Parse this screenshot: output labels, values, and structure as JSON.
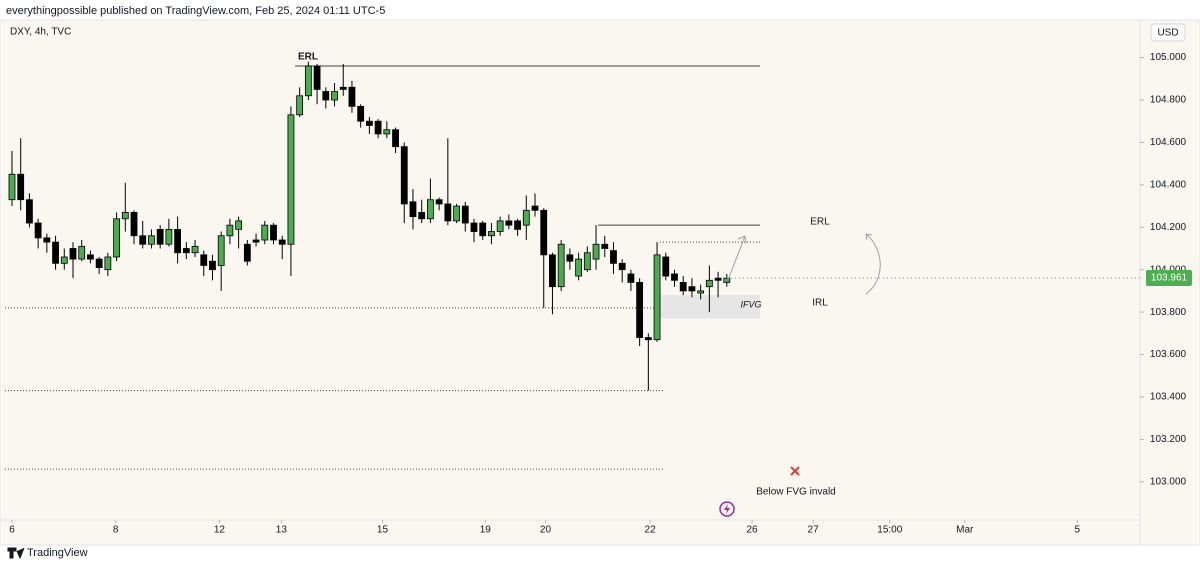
{
  "header": {
    "published": "everythingpossible published on TradingView.com, Feb 25, 2024 01:11 UTC-5",
    "symbol": "DXY, 4h, TVC",
    "currency": "USD",
    "brand": "TradingView"
  },
  "chart_data": {
    "type": "candlestick",
    "x": [
      0,
      1,
      2,
      3,
      4,
      5,
      6,
      7,
      8,
      9,
      10,
      11,
      12,
      13,
      14,
      15,
      16,
      17,
      18,
      19,
      20,
      21,
      22,
      23,
      24,
      25,
      26,
      27,
      28,
      29,
      30,
      31,
      32,
      33,
      34,
      35,
      36,
      37,
      38,
      39,
      40,
      41,
      42,
      43,
      44,
      45,
      46,
      47,
      48,
      49,
      50,
      51,
      52,
      53,
      54,
      55,
      56,
      57,
      58,
      59,
      60,
      61,
      62,
      63,
      64,
      65,
      66,
      67,
      68,
      69,
      70,
      71,
      72,
      73,
      74,
      75,
      76,
      77,
      78,
      79,
      80,
      81,
      82
    ],
    "open": [
      104.33,
      104.45,
      104.33,
      104.22,
      104.15,
      104.13,
      104.03,
      104.1,
      104.05,
      104.07,
      104.05,
      104.0,
      104.06,
      104.24,
      104.27,
      104.16,
      104.12,
      104.19,
      104.12,
      104.19,
      104.1,
      104.08,
      104.07,
      104.04,
      104.02,
      104.16,
      104.19,
      104.12,
      104.14,
      104.14,
      104.21,
      104.14,
      104.12,
      104.73,
      104.82,
      104.96,
      104.84,
      104.8,
      104.86,
      104.86,
      104.77,
      104.7,
      104.7,
      104.64,
      104.66,
      104.58,
      104.32,
      104.27,
      104.24,
      104.33,
      104.31,
      104.23,
      104.3,
      104.22,
      104.22,
      104.16,
      104.18,
      104.23,
      104.23,
      104.21,
      104.3,
      104.28,
      104.07,
      103.92,
      104.07,
      103.97,
      104.0,
      104.05,
      104.12,
      104.09,
      104.03,
      103.98,
      103.94,
      103.68,
      103.67,
      104.06,
      103.98,
      103.94,
      103.92,
      103.89,
      103.92,
      103.96,
      103.94
    ],
    "high": [
      104.56,
      104.62,
      104.36,
      104.24,
      104.17,
      104.16,
      104.1,
      104.13,
      104.14,
      104.09,
      104.06,
      104.08,
      104.27,
      104.41,
      104.28,
      104.23,
      104.19,
      104.21,
      104.24,
      104.25,
      104.13,
      104.14,
      104.09,
      104.07,
      104.18,
      104.24,
      104.25,
      104.14,
      104.17,
      104.23,
      104.22,
      104.16,
      104.77,
      104.86,
      104.98,
      104.97,
      104.86,
      104.88,
      104.97,
      104.89,
      104.78,
      104.72,
      104.71,
      104.7,
      104.67,
      104.6,
      104.38,
      104.33,
      104.43,
      104.34,
      104.62,
      104.31,
      104.32,
      104.24,
      104.23,
      104.22,
      104.25,
      104.26,
      104.24,
      104.35,
      104.36,
      104.29,
      104.08,
      104.14,
      104.1,
      104.08,
      104.11,
      104.21,
      104.16,
      104.13,
      104.05,
      104.0,
      103.96,
      103.7,
      104.13,
      104.08,
      104.0,
      103.97,
      103.96,
      103.93,
      104.02,
      103.99,
      103.98
    ],
    "low": [
      104.3,
      104.28,
      104.2,
      104.1,
      104.08,
      104.0,
      104.0,
      103.96,
      104.04,
      104.03,
      103.98,
      103.97,
      104.04,
      104.18,
      104.12,
      104.1,
      104.1,
      104.1,
      104.11,
      104.03,
      104.05,
      104.06,
      103.97,
      103.95,
      103.9,
      104.12,
      104.1,
      104.02,
      104.11,
      104.12,
      104.12,
      104.05,
      103.97,
      104.72,
      104.8,
      104.78,
      104.76,
      104.77,
      104.82,
      104.74,
      104.67,
      104.64,
      104.62,
      104.62,
      104.55,
      104.22,
      104.19,
      104.22,
      104.22,
      104.28,
      104.21,
      104.22,
      104.18,
      104.13,
      104.14,
      104.12,
      104.16,
      104.19,
      104.16,
      104.14,
      104.25,
      103.82,
      103.79,
      103.9,
      104.0,
      103.95,
      103.99,
      104.0,
      104.06,
      103.98,
      103.94,
      103.9,
      103.64,
      103.43,
      103.66,
      103.95,
      103.92,
      103.88,
      103.87,
      103.86,
      103.8,
      103.87,
      103.92
    ],
    "close": [
      104.45,
      104.33,
      104.22,
      104.15,
      104.13,
      104.03,
      104.06,
      104.05,
      104.11,
      104.05,
      104.01,
      104.06,
      104.24,
      104.27,
      104.16,
      104.12,
      104.16,
      104.12,
      104.19,
      104.08,
      104.08,
      104.11,
      104.02,
      104.0,
      104.16,
      104.21,
      104.23,
      104.04,
      104.13,
      104.21,
      104.14,
      104.12,
      104.73,
      104.82,
      104.96,
      104.85,
      104.8,
      104.84,
      104.85,
      104.77,
      104.7,
      104.68,
      104.64,
      104.66,
      104.58,
      104.31,
      104.25,
      104.24,
      104.33,
      104.31,
      104.23,
      104.3,
      104.22,
      104.18,
      104.16,
      104.18,
      104.23,
      104.21,
      104.19,
      104.28,
      104.28,
      104.07,
      103.92,
      104.12,
      104.04,
      104.05,
      104.08,
      104.12,
      104.1,
      104.03,
      104.0,
      103.94,
      103.68,
      103.67,
      104.07,
      103.97,
      103.95,
      103.9,
      103.9,
      103.9,
      103.95,
      103.95,
      103.96
    ],
    "up_color": "#4caa4f",
    "down_color": "#000000",
    "xlim": [
      -0.8,
      129.4
    ],
    "xticks": [
      {
        "value": 0,
        "label": "6"
      },
      {
        "value": 11.9,
        "label": "8"
      },
      {
        "value": 23.8,
        "label": "12"
      },
      {
        "value": 30.9,
        "label": "13"
      },
      {
        "value": 42.5,
        "label": "15"
      },
      {
        "value": 54.3,
        "label": "19"
      },
      {
        "value": 61.2,
        "label": "20"
      },
      {
        "value": 73.2,
        "label": "22"
      },
      {
        "value": 84.9,
        "label": "26"
      },
      {
        "value": 91.9,
        "label": "27"
      },
      {
        "value": 100.7,
        "label": "15:00"
      },
      {
        "value": 109.3,
        "label": "Mar"
      },
      {
        "value": 122.2,
        "label": "5"
      }
    ],
    "ylim": [
      102.82,
      105.13
    ],
    "yticks": [
      {
        "value": 103,
        "label": "103.000"
      },
      {
        "value": 103.2,
        "label": "103.200"
      },
      {
        "value": 103.4,
        "label": "103.400"
      },
      {
        "value": 103.6,
        "label": "103.600"
      },
      {
        "value": 103.8,
        "label": "103.800"
      },
      {
        "value": 104,
        "label": "104.000"
      },
      {
        "value": 104.2,
        "label": "104.200"
      },
      {
        "value": 104.4,
        "label": "104.400"
      },
      {
        "value": 104.6,
        "label": "104.600"
      },
      {
        "value": 104.8,
        "label": "104.800"
      },
      {
        "value": 105,
        "label": "105.000"
      }
    ],
    "last_price": 103.961,
    "last_price_color": "#4caf50",
    "levels": [
      104.96,
      104.21,
      104.13,
      103.82,
      103.43,
      103.06
    ],
    "zone": [
      103.77,
      103.88
    ],
    "annotations": {
      "erl_top": "ERL",
      "erl_right": "ERL",
      "irl": "IRL",
      "ifvg": "IFVG",
      "note": "Below FVG invald"
    }
  }
}
